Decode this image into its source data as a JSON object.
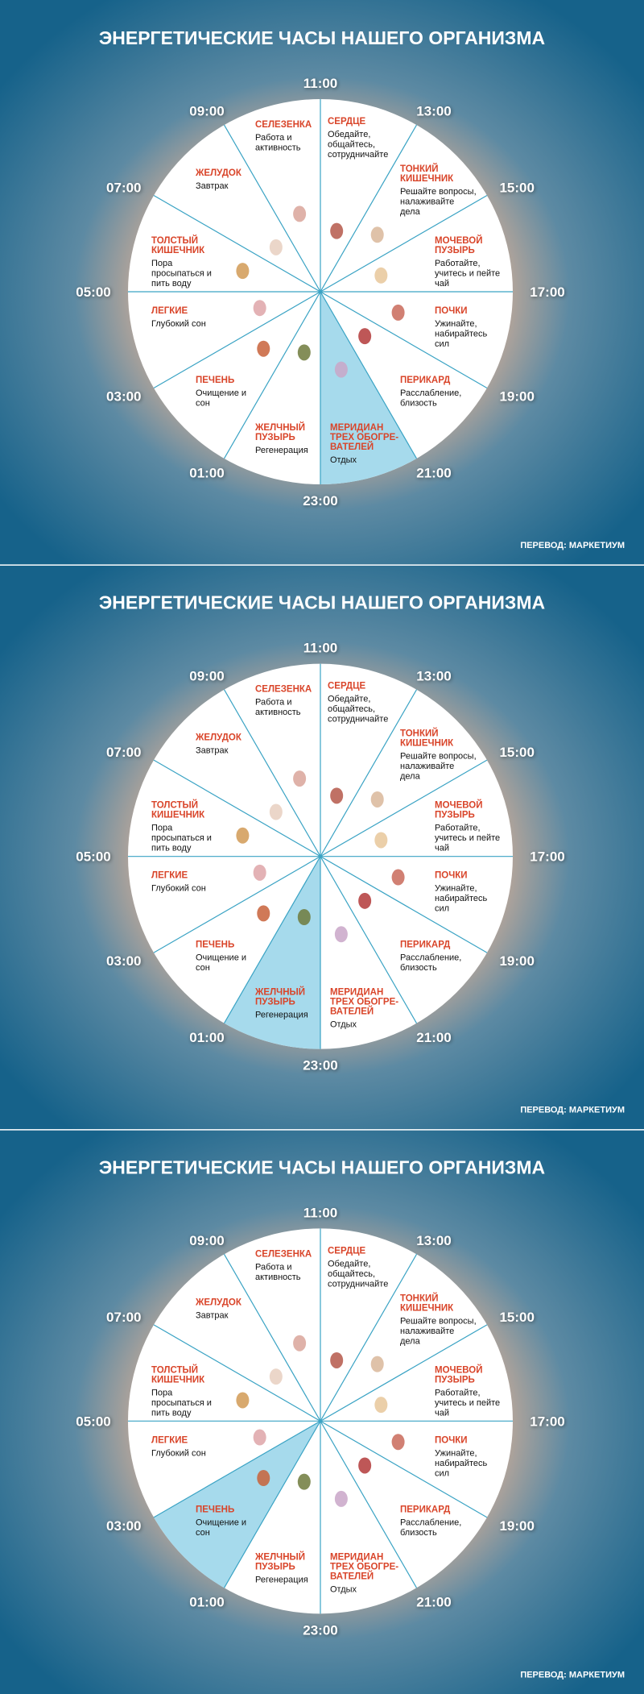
{
  "clock": {
    "title": "ЭНЕРГЕТИЧЕСКИЕ ЧАСЫ НАШЕГО ОРГАНИЗМА",
    "credit": "ПЕРЕВОД: МАРКЕТИУМ",
    "times": [
      "11:00",
      "13:00",
      "15:00",
      "17:00",
      "19:00",
      "21:00",
      "23:00",
      "01:00",
      "03:00",
      "05:00",
      "07:00",
      "09:00"
    ],
    "sectors": [
      {
        "name": [
          "СЕРДЦЕ"
        ],
        "text": [
          "Обедайте,",
          "общайтесь,",
          "сотрудничайте"
        ]
      },
      {
        "name": [
          "ТОНКИЙ",
          "КИШЕЧНИК"
        ],
        "text": [
          "Решайте вопросы,",
          "налаживайте",
          "дела"
        ]
      },
      {
        "name": [
          "МОЧЕВОЙ",
          "ПУЗЫРЬ"
        ],
        "text": [
          "Работайте,",
          "учитесь и пейте",
          "чай"
        ]
      },
      {
        "name": [
          "ПОЧКИ"
        ],
        "text": [
          "Ужинайте,",
          "набирайтесь",
          "сил"
        ]
      },
      {
        "name": [
          "ПЕРИКАРД"
        ],
        "text": [
          "Расслабление,",
          "близость"
        ]
      },
      {
        "name": [
          "МЕРИДИАН",
          "ТРЕХ ОБОГРЕ-",
          "ВАТЕЛЕЙ"
        ],
        "text": [
          "Отдых"
        ]
      },
      {
        "name": [
          "ЖЕЛЧНЫЙ",
          "ПУЗЫРЬ"
        ],
        "text": [
          "Регенерация"
        ]
      },
      {
        "name": [
          "ПЕЧЕНЬ"
        ],
        "text": [
          "Очищение и",
          "сон"
        ]
      },
      {
        "name": [
          "ЛЕГКИЕ"
        ],
        "text": [
          "Глубокий сон"
        ]
      },
      {
        "name": [
          "ТОЛСТЫЙ",
          "КИШЕЧНИК"
        ],
        "text": [
          "Пора",
          "просыпаться и",
          "пить воду"
        ]
      },
      {
        "name": [
          "ЖЕЛУДОК"
        ],
        "text": [
          "Завтрак"
        ]
      },
      {
        "name": [
          "СЕЛЕЗЕНКА"
        ],
        "text": [
          "Работа и",
          "активность"
        ]
      }
    ]
  },
  "panels": [
    {
      "highlighted_sector": 5
    },
    {
      "highlighted_sector": 6
    },
    {
      "highlighted_sector": 7
    }
  ]
}
